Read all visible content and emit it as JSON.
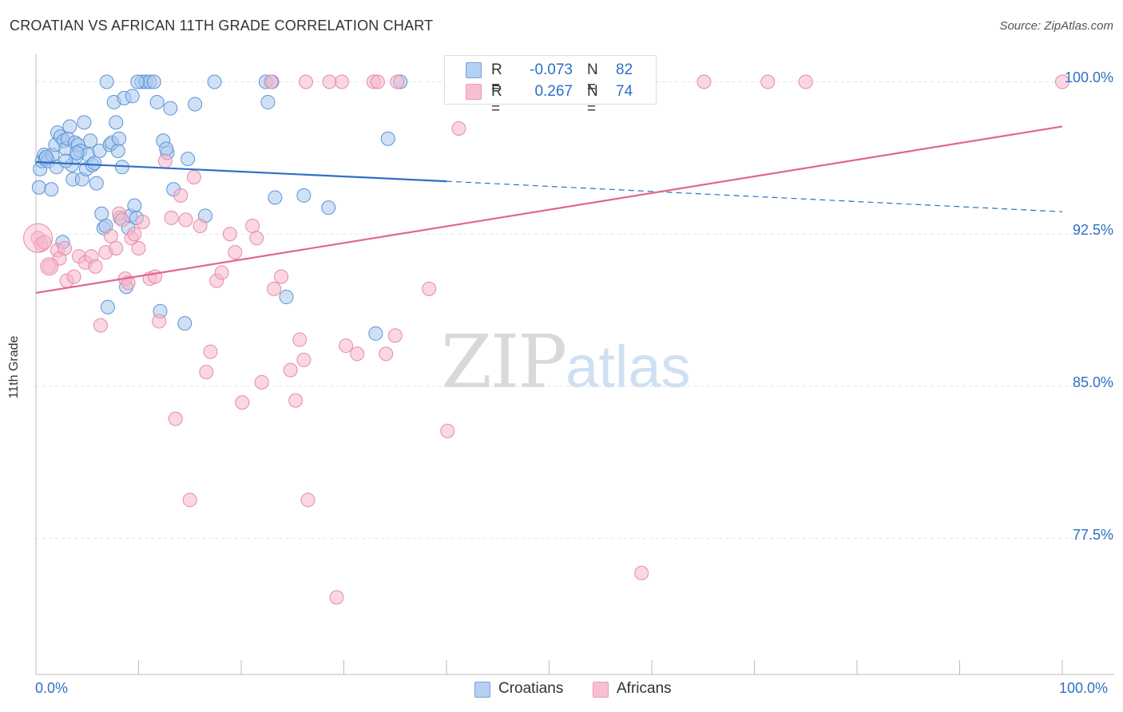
{
  "header": {
    "title": "CROATIAN VS AFRICAN 11TH GRADE CORRELATION CHART",
    "source": "Source: ZipAtlas.com"
  },
  "watermark": {
    "zip": "ZIP",
    "atlas": "atlas"
  },
  "stats": {
    "row1": {
      "r_label": "R =",
      "r_value": "-0.073",
      "n_label": "N =",
      "n_value": "82",
      "color": "#a9c8ef"
    },
    "row2": {
      "r_label": "R =",
      "r_value": "0.267",
      "n_label": "N =",
      "n_value": "74",
      "color": "#f6b6c9"
    }
  },
  "legend": {
    "croatians": "Croatians",
    "africans": "Africans"
  },
  "axes": {
    "ylabel": "11th Grade",
    "xmin_label": "0.0%",
    "xmax_label": "100.0%",
    "ytick_labels": [
      "100.0%",
      "92.5%",
      "85.0%",
      "77.5%"
    ]
  },
  "colors": {
    "croatians_fill": "#a9c8ef",
    "croatians_stroke": "#5b93d6",
    "croatians_line": "#2f6fc4",
    "africans_fill": "#f6b6c9",
    "africans_stroke": "#e88aa8",
    "africans_line": "#e0668f",
    "tick_text": "#2f6fc4",
    "grid": "#e3e3e3"
  },
  "chart_data": {
    "type": "scatter",
    "title": "CROATIAN VS AFRICAN 11TH GRADE CORRELATION CHART",
    "xlabel": "",
    "ylabel": "11th Grade",
    "xlim": [
      0,
      100
    ],
    "ylim": [
      70.8,
      101.2
    ],
    "yticks": [
      77.5,
      85.0,
      92.5,
      100.0
    ],
    "grid": true,
    "legend_position": "bottom-center",
    "series": [
      {
        "name": "Croatians",
        "r": -0.073,
        "n": 82,
        "trend": {
          "x": [
            0,
            40,
            100
          ],
          "y": [
            96.05,
            95.1,
            93.6
          ],
          "solid_until_x": 40
        },
        "points": [
          [
            0.3,
            94.8
          ],
          [
            0.4,
            95.7
          ],
          [
            0.6,
            96.1
          ],
          [
            0.8,
            96.4
          ],
          [
            0.9,
            96.2
          ],
          [
            1.2,
            96.1
          ],
          [
            1.5,
            94.7
          ],
          [
            1.6,
            96.4
          ],
          [
            1.9,
            96.9
          ],
          [
            2.0,
            95.8
          ],
          [
            2.1,
            97.5
          ],
          [
            2.4,
            97.3
          ],
          [
            2.6,
            92.1
          ],
          [
            2.7,
            97.1
          ],
          [
            2.9,
            96.7
          ],
          [
            3.1,
            97.2
          ],
          [
            3.3,
            97.8
          ],
          [
            3.5,
            95.9
          ],
          [
            3.6,
            95.2
          ],
          [
            3.8,
            97.0
          ],
          [
            3.9,
            96.3
          ],
          [
            4.1,
            96.9
          ],
          [
            4.3,
            96.6
          ],
          [
            4.5,
            95.2
          ],
          [
            4.7,
            98.0
          ],
          [
            4.9,
            95.7
          ],
          [
            5.1,
            96.4
          ],
          [
            5.3,
            97.1
          ],
          [
            5.5,
            95.9
          ],
          [
            5.7,
            96.0
          ],
          [
            5.9,
            95.0
          ],
          [
            6.2,
            96.6
          ],
          [
            6.4,
            93.5
          ],
          [
            6.6,
            92.8
          ],
          [
            6.8,
            92.9
          ],
          [
            7.0,
            88.9
          ],
          [
            7.2,
            96.9
          ],
          [
            7.4,
            97.0
          ],
          [
            7.6,
            99.0
          ],
          [
            7.8,
            98.0
          ],
          [
            8.0,
            96.6
          ],
          [
            8.2,
            93.3
          ],
          [
            8.4,
            95.8
          ],
          [
            8.6,
            99.2
          ],
          [
            8.8,
            89.9
          ],
          [
            9.0,
            92.8
          ],
          [
            9.2,
            93.4
          ],
          [
            9.4,
            99.3
          ],
          [
            9.6,
            93.9
          ],
          [
            9.8,
            93.3
          ],
          [
            10.3,
            100.0
          ],
          [
            10.7,
            100.0
          ],
          [
            11.1,
            100.0
          ],
          [
            11.5,
            100.0
          ],
          [
            11.8,
            99.0
          ],
          [
            12.1,
            88.7
          ],
          [
            12.4,
            97.1
          ],
          [
            12.8,
            96.5
          ],
          [
            13.1,
            98.7
          ],
          [
            13.4,
            94.7
          ],
          [
            14.5,
            88.1
          ],
          [
            14.8,
            96.2
          ],
          [
            15.5,
            98.9
          ],
          [
            16.5,
            93.4
          ],
          [
            17.4,
            100.0
          ],
          [
            22.4,
            100.0
          ],
          [
            22.6,
            99.0
          ],
          [
            23.0,
            100.0
          ],
          [
            23.3,
            94.3
          ],
          [
            24.4,
            89.4
          ],
          [
            26.1,
            94.4
          ],
          [
            28.5,
            93.8
          ],
          [
            33.1,
            87.6
          ],
          [
            34.3,
            97.2
          ],
          [
            35.5,
            100.0
          ],
          [
            2.9,
            96.1
          ],
          [
            6.9,
            100.0
          ],
          [
            9.9,
            100.0
          ],
          [
            4.0,
            96.5
          ],
          [
            1.0,
            96.3
          ],
          [
            8.1,
            97.2
          ],
          [
            12.7,
            96.7
          ]
        ]
      },
      {
        "name": "Africans",
        "r": 0.267,
        "n": 74,
        "trend": {
          "x": [
            0,
            100
          ],
          "y": [
            89.6,
            97.8
          ]
        },
        "points": [
          [
            0.2,
            92.3
          ],
          [
            1.3,
            90.9
          ],
          [
            2.1,
            91.7
          ],
          [
            2.3,
            91.3
          ],
          [
            2.8,
            91.8
          ],
          [
            3.0,
            90.2
          ],
          [
            3.7,
            90.4
          ],
          [
            4.2,
            91.4
          ],
          [
            4.8,
            91.1
          ],
          [
            5.4,
            91.4
          ],
          [
            5.8,
            90.9
          ],
          [
            6.3,
            88.0
          ],
          [
            6.8,
            91.6
          ],
          [
            7.3,
            92.4
          ],
          [
            7.8,
            91.8
          ],
          [
            8.1,
            93.5
          ],
          [
            8.4,
            93.2
          ],
          [
            8.7,
            90.3
          ],
          [
            9.0,
            90.1
          ],
          [
            9.3,
            92.3
          ],
          [
            9.6,
            92.5
          ],
          [
            10.0,
            91.8
          ],
          [
            10.4,
            93.1
          ],
          [
            11.1,
            90.3
          ],
          [
            11.6,
            90.4
          ],
          [
            12.0,
            88.2
          ],
          [
            12.6,
            96.1
          ],
          [
            13.2,
            93.3
          ],
          [
            13.6,
            83.4
          ],
          [
            14.1,
            94.4
          ],
          [
            14.6,
            93.2
          ],
          [
            15.0,
            79.4
          ],
          [
            15.4,
            95.3
          ],
          [
            16.0,
            92.9
          ],
          [
            16.6,
            85.7
          ],
          [
            17.0,
            86.7
          ],
          [
            17.6,
            90.2
          ],
          [
            18.1,
            90.6
          ],
          [
            18.9,
            92.5
          ],
          [
            19.4,
            91.6
          ],
          [
            20.1,
            84.2
          ],
          [
            21.1,
            92.9
          ],
          [
            21.5,
            92.3
          ],
          [
            22.0,
            85.2
          ],
          [
            22.9,
            100.0
          ],
          [
            23.2,
            89.8
          ],
          [
            23.9,
            90.4
          ],
          [
            24.8,
            85.8
          ],
          [
            25.3,
            84.3
          ],
          [
            25.7,
            87.3
          ],
          [
            26.1,
            86.3
          ],
          [
            26.3,
            100.0
          ],
          [
            26.5,
            79.4
          ],
          [
            28.6,
            100.0
          ],
          [
            29.3,
            74.6
          ],
          [
            29.8,
            100.0
          ],
          [
            30.2,
            87.0
          ],
          [
            31.3,
            86.6
          ],
          [
            32.9,
            100.0
          ],
          [
            33.3,
            100.0
          ],
          [
            34.1,
            86.6
          ],
          [
            35.0,
            87.5
          ],
          [
            35.2,
            100.0
          ],
          [
            38.3,
            89.8
          ],
          [
            40.1,
            82.8
          ],
          [
            41.2,
            97.7
          ],
          [
            45.0,
            100.0
          ],
          [
            59.0,
            75.8
          ],
          [
            65.1,
            100.0
          ],
          [
            71.3,
            100.0
          ],
          [
            75.0,
            100.0
          ],
          [
            100.0,
            100.0
          ],
          [
            0.5,
            92.0
          ],
          [
            0.8,
            92.1
          ]
        ]
      }
    ]
  }
}
